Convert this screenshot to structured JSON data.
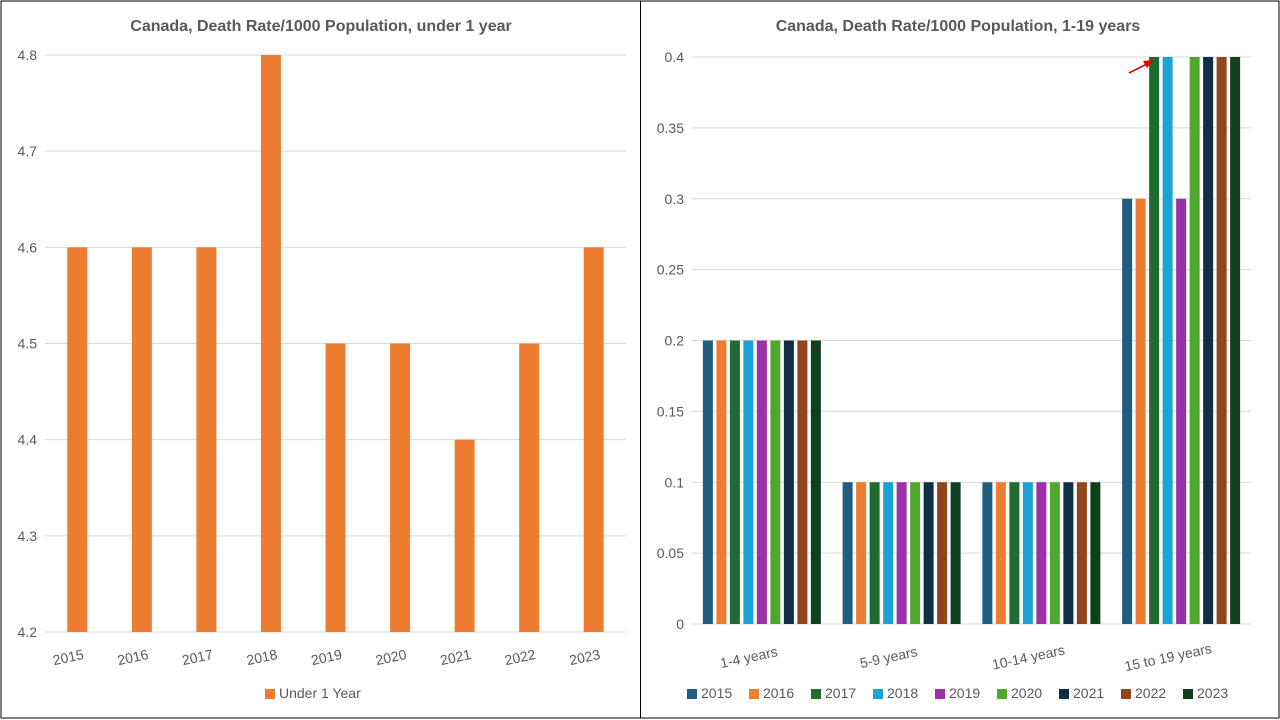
{
  "chart_data": [
    {
      "type": "bar",
      "title": "Canada, Death Rate/1000 Population, under 1 year",
      "categories": [
        "2015",
        "2016",
        "2017",
        "2018",
        "2019",
        "2020",
        "2021",
        "2022",
        "2023"
      ],
      "series": [
        {
          "name": "Under 1 Year",
          "color": "#ED7D31",
          "values": [
            4.6,
            4.6,
            4.6,
            4.8,
            4.5,
            4.5,
            4.4,
            4.5,
            4.6
          ]
        }
      ],
      "ylim": [
        4.2,
        4.8
      ],
      "yticks": [
        "4.2",
        "4.3",
        "4.4",
        "4.5",
        "4.6",
        "4.7",
        "4.8"
      ],
      "grid": true,
      "legend_position": "bottom"
    },
    {
      "type": "bar",
      "title": "Canada, Death Rate/1000 Population, 1-19 years",
      "categories": [
        "1-4 years",
        "5-9 years",
        "10-14 years",
        "15 to 19 years"
      ],
      "series": [
        {
          "name": "2015",
          "color": "#1F5E80",
          "values": [
            0.2,
            0.1,
            0.1,
            0.3
          ]
        },
        {
          "name": "2016",
          "color": "#ED7D31",
          "values": [
            0.2,
            0.1,
            0.1,
            0.3
          ]
        },
        {
          "name": "2017",
          "color": "#1E6B34",
          "values": [
            0.2,
            0.1,
            0.1,
            0.4
          ]
        },
        {
          "name": "2018",
          "color": "#1BA3D8",
          "values": [
            0.2,
            0.1,
            0.1,
            0.4
          ]
        },
        {
          "name": "2019",
          "color": "#9B30A8",
          "values": [
            0.2,
            0.1,
            0.1,
            0.3
          ]
        },
        {
          "name": "2020",
          "color": "#4EA72E",
          "values": [
            0.2,
            0.1,
            0.1,
            0.4
          ]
        },
        {
          "name": "2021",
          "color": "#0F2F45",
          "values": [
            0.2,
            0.1,
            0.1,
            0.4
          ]
        },
        {
          "name": "2022",
          "color": "#92441A",
          "values": [
            0.2,
            0.1,
            0.1,
            0.4
          ]
        },
        {
          "name": "2023",
          "color": "#11401E",
          "values": [
            0.2,
            0.1,
            0.1,
            0.4
          ]
        }
      ],
      "ylim": [
        0,
        0.4
      ],
      "yticks": [
        "0",
        "0.05",
        "0.1",
        "0.15",
        "0.2",
        "0.25",
        "0.3",
        "0.35",
        "0.4"
      ],
      "grid": true,
      "legend_position": "bottom",
      "annotation": {
        "type": "arrow",
        "color": "#E00000",
        "points_to": "15 to 19 years, 2017 bar top"
      }
    }
  ]
}
